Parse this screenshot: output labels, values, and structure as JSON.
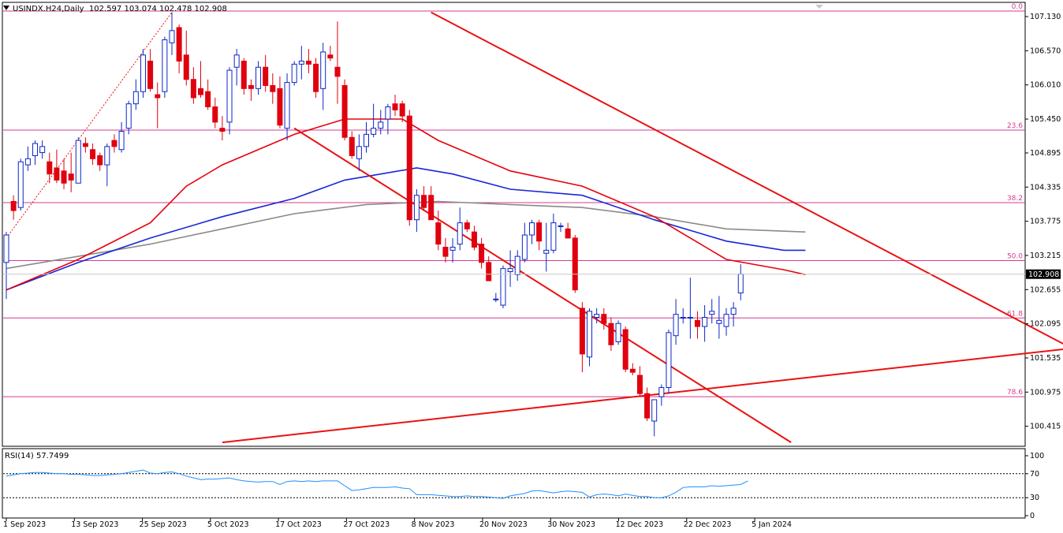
{
  "header": {
    "symbol": "USINDX.H24,Daily",
    "ohlc": "102.597 103.074 102.478 102.908"
  },
  "rsi_header": "RSI(14) 57.7499",
  "chart_data": [
    {
      "type": "candlestick",
      "symbol": "USINDX.H24",
      "timeframe": "Daily",
      "ylim": [
        100.1,
        107.35
      ],
      "y_ticks": [
        "107.130",
        "106.570",
        "106.010",
        "105.450",
        "104.895",
        "104.335",
        "103.775",
        "103.215",
        "102.655",
        "102.095",
        "101.535",
        "100.975",
        "100.415"
      ],
      "current_price": "102.908",
      "x_ticks": [
        "1 Sep 2023",
        "13 Sep 2023",
        "25 Sep 2023",
        "5 Oct 2023",
        "17 Oct 2023",
        "27 Oct 2023",
        "8 Nov 2023",
        "20 Nov 2023",
        "30 Nov 2023",
        "12 Dec 2023",
        "22 Dec 2023",
        "5 Jan 2024"
      ],
      "colors": {
        "up": "#ffffff",
        "up_border": "#0b27c8",
        "down": "#e0000e",
        "ma_fast": "#e8000b",
        "ma_mid": "#1a26d6",
        "ma_slow": "#8c8a88",
        "fib": "#d63b8f",
        "trendline": "#ea1111"
      },
      "candles": [
        [
          103.1,
          103.6,
          102.5,
          103.55
        ],
        [
          104.1,
          104.2,
          103.8,
          103.95
        ],
        [
          104.0,
          104.8,
          103.95,
          104.75
        ],
        [
          104.7,
          105.0,
          104.6,
          104.8
        ],
        [
          104.85,
          105.1,
          104.7,
          105.05
        ],
        [
          104.9,
          105.1,
          104.8,
          105.0
        ],
        [
          104.75,
          104.9,
          104.4,
          104.55
        ],
        [
          104.65,
          104.95,
          104.4,
          104.45
        ],
        [
          104.6,
          104.8,
          104.3,
          104.4
        ],
        [
          104.55,
          104.9,
          104.25,
          104.45
        ],
        [
          104.4,
          105.15,
          104.4,
          105.1
        ],
        [
          105.05,
          105.15,
          104.9,
          105.0
        ],
        [
          104.95,
          105.05,
          104.7,
          104.8
        ],
        [
          104.85,
          104.9,
          104.6,
          104.7
        ],
        [
          104.7,
          105.05,
          104.35,
          105.0
        ],
        [
          105.1,
          105.2,
          104.9,
          105.0
        ],
        [
          104.95,
          105.4,
          104.9,
          105.25
        ],
        [
          105.3,
          105.75,
          105.2,
          105.7
        ],
        [
          105.7,
          106.1,
          105.6,
          105.9
        ],
        [
          105.9,
          106.6,
          105.8,
          106.5
        ],
        [
          106.4,
          106.6,
          105.9,
          105.95
        ],
        [
          105.85,
          106.05,
          105.3,
          105.8
        ],
        [
          105.9,
          106.8,
          105.8,
          106.75
        ],
        [
          106.7,
          107.2,
          106.5,
          106.9
        ],
        [
          106.95,
          107.0,
          106.2,
          106.4
        ],
        [
          106.5,
          106.9,
          106.0,
          106.1
        ],
        [
          106.1,
          106.3,
          105.7,
          105.8
        ],
        [
          105.95,
          106.4,
          105.8,
          105.85
        ],
        [
          105.9,
          106.1,
          105.6,
          105.65
        ],
        [
          105.65,
          105.8,
          105.3,
          105.4
        ],
        [
          105.3,
          105.5,
          105.1,
          105.25
        ],
        [
          105.4,
          106.3,
          105.2,
          106.25
        ],
        [
          106.3,
          106.6,
          106.0,
          106.5
        ],
        [
          106.4,
          106.45,
          105.85,
          105.95
        ],
        [
          106.0,
          106.1,
          105.75,
          105.95
        ],
        [
          105.95,
          106.4,
          105.85,
          106.3
        ],
        [
          106.3,
          106.5,
          105.9,
          106.0
        ],
        [
          106.0,
          106.2,
          105.7,
          105.9
        ],
        [
          105.95,
          106.15,
          105.3,
          105.35
        ],
        [
          105.3,
          106.2,
          105.1,
          106.05
        ],
        [
          106.05,
          106.4,
          106.0,
          106.35
        ],
        [
          106.35,
          106.65,
          106.1,
          106.4
        ],
        [
          106.4,
          106.6,
          106.2,
          106.35
        ],
        [
          106.35,
          106.45,
          105.8,
          105.9
        ],
        [
          105.95,
          106.7,
          105.6,
          106.55
        ],
        [
          106.5,
          106.65,
          106.4,
          106.45
        ],
        [
          106.3,
          107.05,
          105.7,
          106.15
        ],
        [
          106.0,
          106.1,
          105.1,
          105.15
        ],
        [
          105.15,
          105.25,
          104.8,
          104.85
        ],
        [
          104.8,
          105.2,
          104.6,
          105.0
        ],
        [
          105.0,
          105.4,
          104.9,
          105.2
        ],
        [
          105.2,
          105.7,
          105.15,
          105.3
        ],
        [
          105.3,
          105.6,
          105.2,
          105.4
        ],
        [
          105.45,
          105.7,
          105.2,
          105.65
        ],
        [
          105.7,
          105.85,
          105.5,
          105.6
        ],
        [
          105.7,
          105.75,
          105.4,
          105.5
        ],
        [
          105.5,
          105.6,
          103.7,
          103.8
        ],
        [
          103.8,
          104.3,
          103.6,
          104.2
        ],
        [
          104.2,
          104.35,
          103.95,
          104.0
        ],
        [
          104.2,
          104.35,
          103.8,
          103.8
        ],
        [
          103.75,
          103.95,
          103.3,
          103.4
        ],
        [
          103.35,
          103.5,
          103.1,
          103.2
        ],
        [
          103.3,
          103.5,
          103.1,
          103.35
        ],
        [
          103.4,
          104.0,
          103.3,
          103.75
        ],
        [
          103.75,
          103.8,
          103.6,
          103.65
        ],
        [
          103.6,
          103.7,
          103.3,
          103.35
        ],
        [
          103.4,
          103.5,
          103.0,
          103.1
        ],
        [
          103.1,
          103.2,
          102.8,
          102.8
        ],
        [
          102.5,
          102.6,
          102.45,
          102.5
        ],
        [
          102.4,
          103.05,
          102.35,
          103.0
        ],
        [
          102.95,
          103.3,
          102.7,
          103.0
        ],
        [
          102.9,
          103.3,
          102.8,
          103.2
        ],
        [
          103.15,
          103.75,
          103.1,
          103.55
        ],
        [
          103.55,
          103.8,
          103.4,
          103.75
        ],
        [
          103.75,
          103.8,
          103.3,
          103.45
        ],
        [
          103.25,
          103.75,
          102.95,
          103.3
        ],
        [
          103.3,
          103.9,
          103.25,
          103.75
        ],
        [
          103.7,
          103.75,
          103.6,
          103.7
        ],
        [
          103.65,
          103.75,
          103.5,
          103.5
        ],
        [
          103.5,
          103.55,
          102.6,
          102.65
        ],
        [
          102.35,
          102.45,
          101.3,
          101.6
        ],
        [
          101.55,
          102.35,
          101.4,
          102.3
        ],
        [
          102.2,
          102.35,
          102.1,
          102.25
        ],
        [
          102.25,
          102.35,
          102.0,
          102.1
        ],
        [
          102.1,
          102.2,
          101.65,
          101.75
        ],
        [
          101.8,
          102.15,
          101.75,
          102.1
        ],
        [
          102.0,
          102.05,
          101.3,
          101.35
        ],
        [
          101.35,
          101.45,
          101.25,
          101.3
        ],
        [
          101.25,
          101.4,
          100.9,
          100.95
        ],
        [
          100.95,
          101.05,
          100.5,
          100.55
        ],
        [
          100.5,
          100.85,
          100.25,
          100.85
        ],
        [
          100.9,
          101.1,
          100.75,
          101.05
        ],
        [
          101.05,
          102.0,
          100.95,
          101.95
        ],
        [
          101.9,
          102.5,
          101.75,
          102.25
        ],
        [
          102.2,
          102.35,
          102.1,
          102.2
        ],
        [
          102.2,
          102.85,
          101.85,
          102.2
        ],
        [
          102.15,
          102.3,
          101.85,
          102.05
        ],
        [
          102.05,
          102.4,
          101.8,
          102.2
        ],
        [
          102.25,
          102.5,
          102.1,
          102.3
        ],
        [
          102.1,
          102.55,
          101.85,
          102.15
        ],
        [
          102.05,
          102.35,
          101.9,
          102.25
        ],
        [
          102.25,
          102.45,
          102.05,
          102.35
        ],
        [
          102.6,
          103.07,
          102.48,
          102.91
        ]
      ],
      "fib_levels": [
        {
          "label": "0.0",
          "value": 107.22
        },
        {
          "label": "23.6",
          "value": 105.27
        },
        {
          "label": "38.2",
          "value": 104.08
        },
        {
          "label": "50.0",
          "value": 103.13
        },
        {
          "label": "61.8",
          "value": 102.19
        },
        {
          "label": "78.6",
          "value": 100.9
        }
      ],
      "trendlines": [
        {
          "from": [
            59,
            107.2
          ],
          "to": [
            160,
            100.95
          ]
        },
        {
          "from": [
            40,
            105.3
          ],
          "to": [
            109,
            100.15
          ]
        },
        {
          "from": [
            30,
            100.15
          ],
          "to": [
            160,
            101.85
          ]
        }
      ],
      "ma_fast": [
        [
          0,
          102.65
        ],
        [
          10,
          103.15
        ],
        [
          20,
          103.75
        ],
        [
          25,
          104.35
        ],
        [
          30,
          104.7
        ],
        [
          40,
          105.2
        ],
        [
          47,
          105.45
        ],
        [
          55,
          105.45
        ],
        [
          60,
          105.1
        ],
        [
          70,
          104.6
        ],
        [
          80,
          104.35
        ],
        [
          90,
          103.85
        ],
        [
          100,
          103.15
        ],
        [
          108,
          102.98
        ],
        [
          111,
          102.9
        ]
      ],
      "ma_mid": [
        [
          0,
          102.65
        ],
        [
          10,
          103.1
        ],
        [
          20,
          103.5
        ],
        [
          30,
          103.85
        ],
        [
          40,
          104.15
        ],
        [
          47,
          104.45
        ],
        [
          52,
          104.55
        ],
        [
          57,
          104.65
        ],
        [
          62,
          104.55
        ],
        [
          70,
          104.3
        ],
        [
          80,
          104.2
        ],
        [
          90,
          103.8
        ],
        [
          100,
          103.45
        ],
        [
          108,
          103.3
        ],
        [
          111,
          103.3
        ]
      ],
      "ma_slow": [
        [
          0,
          103.0
        ],
        [
          10,
          103.2
        ],
        [
          20,
          103.4
        ],
        [
          30,
          103.65
        ],
        [
          40,
          103.9
        ],
        [
          50,
          104.05
        ],
        [
          60,
          104.1
        ],
        [
          70,
          104.05
        ],
        [
          80,
          104.0
        ],
        [
          90,
          103.85
        ],
        [
          100,
          103.65
        ],
        [
          111,
          103.6
        ]
      ]
    },
    {
      "type": "line",
      "title": "RSI(14) 57.7499",
      "ylim": [
        0,
        100
      ],
      "y_ticks": [
        "100",
        "70",
        "30",
        "0"
      ],
      "levels": [
        70,
        30
      ],
      "color": "#1e90ff",
      "values": [
        66,
        68,
        70,
        71,
        72,
        72,
        71,
        70,
        70,
        69,
        69,
        68,
        67,
        67,
        68,
        69,
        70,
        72,
        74,
        76,
        71,
        70,
        72,
        73,
        70,
        66,
        63,
        60,
        61,
        61,
        62,
        63,
        60,
        58,
        57,
        56,
        57,
        57,
        52,
        57,
        58,
        57,
        58,
        57,
        58,
        58,
        58,
        50,
        42,
        43,
        45,
        47,
        47,
        47,
        48,
        46,
        45,
        35,
        35,
        35,
        34,
        33,
        32,
        32,
        33,
        32,
        32,
        31,
        30,
        29,
        33,
        35,
        37,
        41,
        42,
        40,
        38,
        40,
        41,
        40,
        39,
        31,
        35,
        36,
        35,
        33,
        36,
        34,
        32,
        32,
        30,
        30,
        33,
        39,
        47,
        48,
        48,
        48,
        50,
        49,
        50,
        51,
        52,
        58
      ]
    }
  ]
}
